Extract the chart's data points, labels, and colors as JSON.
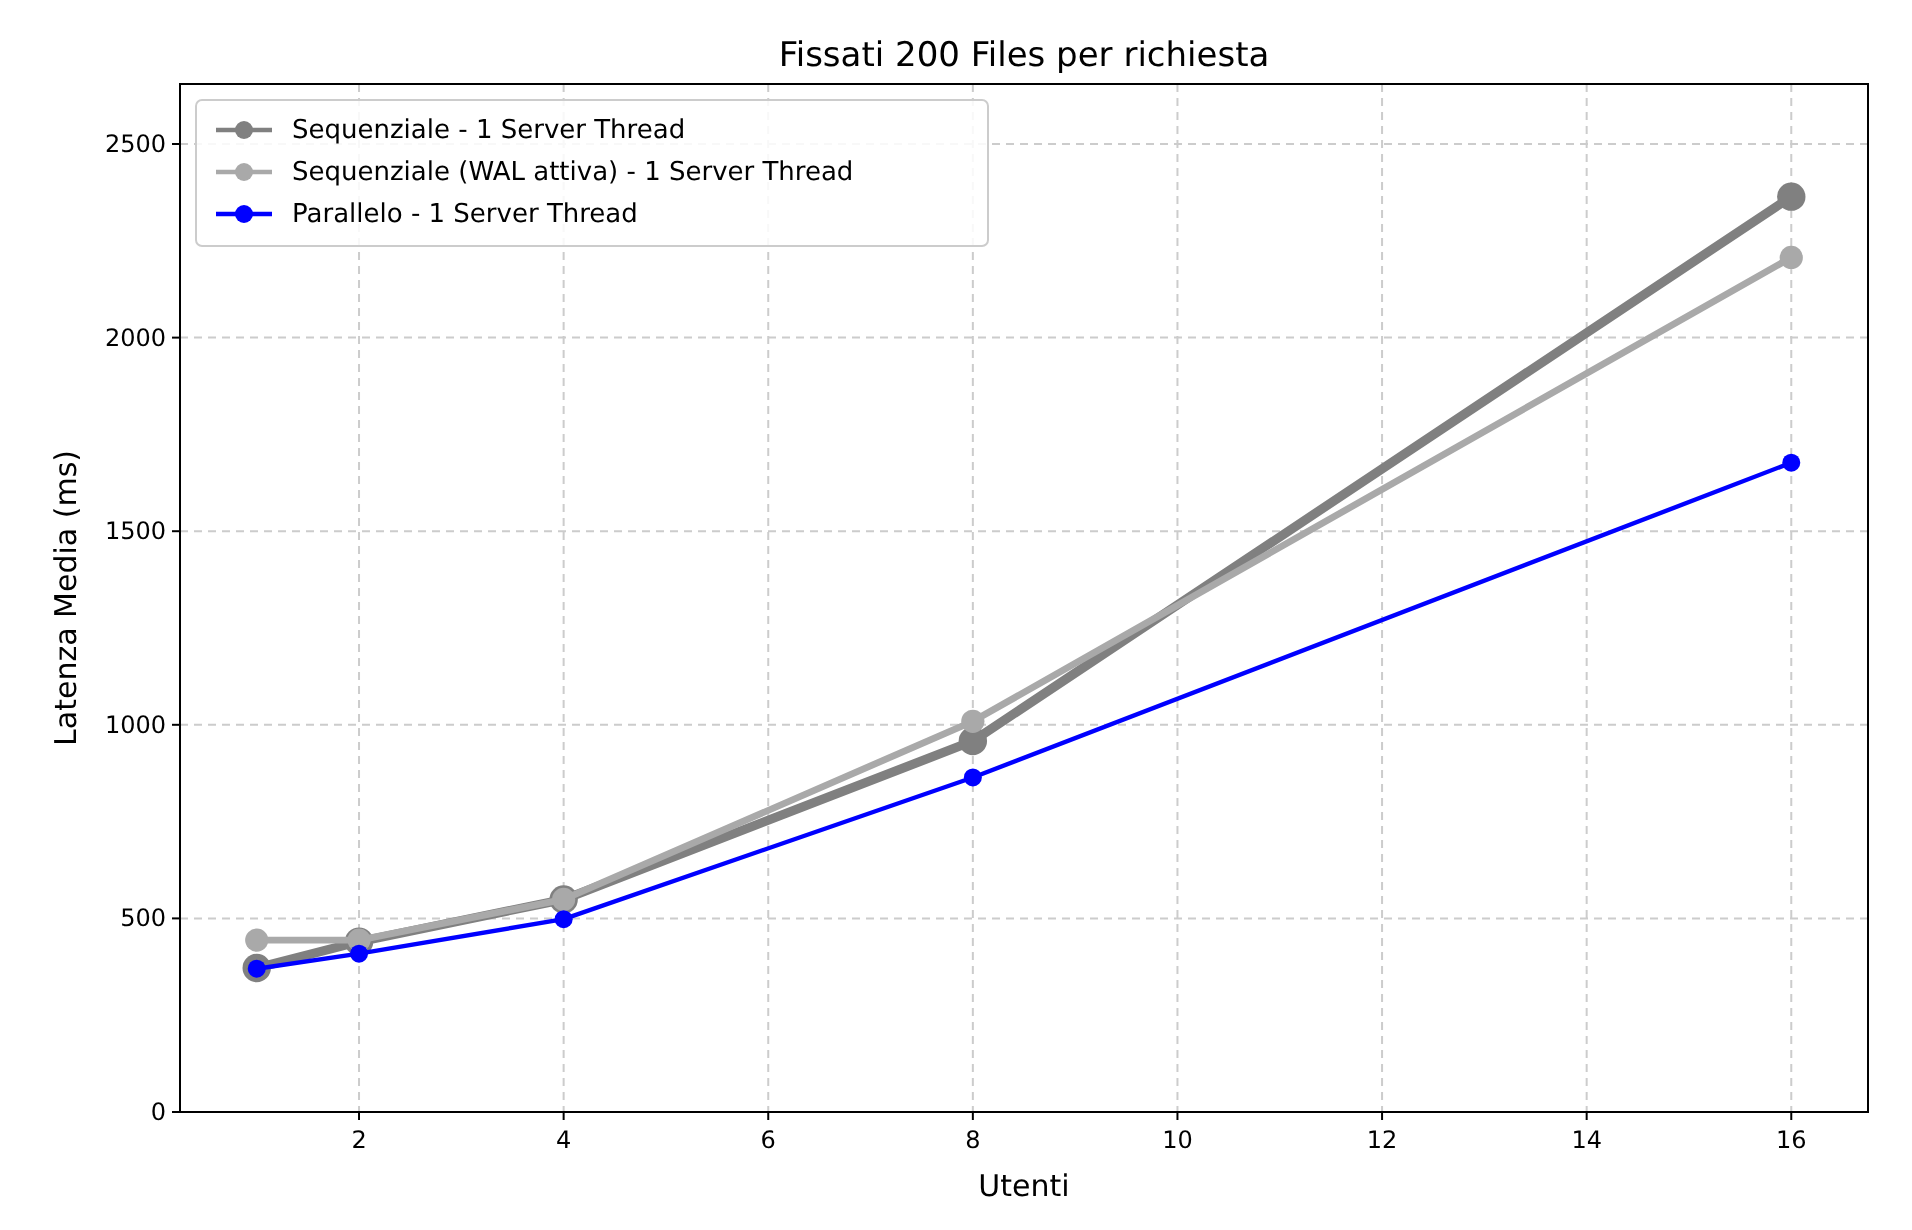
{
  "chart_data": {
    "type": "line",
    "title": "Fissati 200 Files per richiesta",
    "xlabel": "Utenti",
    "ylabel": "Latenza Media (ms)",
    "x": [
      1,
      2,
      4,
      8,
      16
    ],
    "series": [
      {
        "name": "Sequenziale - 1 Server Thread",
        "color": "#808080",
        "values": [
          372,
          440,
          549,
          958,
          2364
        ]
      },
      {
        "name": "Sequenziale (WAL attiva) - 1 Server Thread",
        "color": "#a9a9a9",
        "values": [
          444,
          444,
          549,
          1009,
          2207
        ]
      },
      {
        "name": "Parallelo - 1 Server Thread",
        "color": "#0000ff",
        "values": [
          370,
          409,
          498,
          864,
          1677
        ]
      }
    ],
    "xlim": [
      0.25,
      16.75
    ],
    "xticks": [
      2,
      4,
      6,
      8,
      10,
      12,
      14,
      16
    ],
    "ylim": [
      0,
      2655
    ],
    "yticks": [
      0,
      500,
      1000,
      1500,
      2000,
      2500
    ],
    "grid": true,
    "legend": "top left",
    "marker": "circle",
    "line_style": "solid"
  }
}
